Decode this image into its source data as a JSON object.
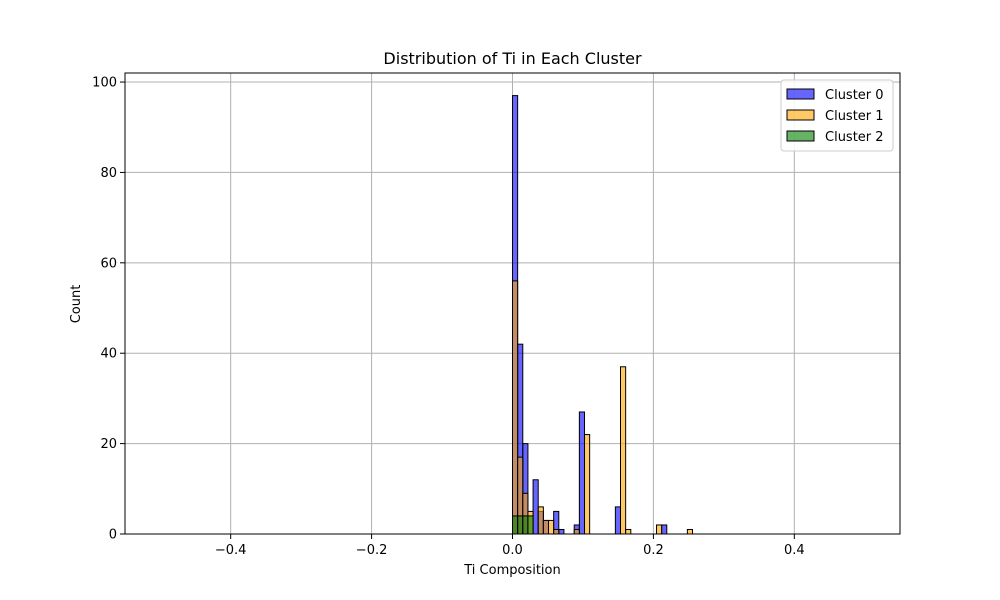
{
  "chart_data": {
    "type": "bar",
    "title": "Distribution of Ti in Each Cluster",
    "xlabel": "Ti Composition",
    "ylabel": "Count",
    "xlim": [
      -0.55,
      0.55
    ],
    "ylim": [
      0,
      102
    ],
    "grid": true,
    "legend_position": "top-right",
    "x_ticks": [
      -0.4,
      -0.2,
      0.0,
      0.2,
      0.4
    ],
    "x_tick_labels": [
      "−0.4",
      "−0.2",
      "0.0",
      "0.2",
      "0.4"
    ],
    "y_ticks": [
      0,
      20,
      40,
      60,
      80,
      100
    ],
    "y_tick_labels": [
      "0",
      "20",
      "40",
      "60",
      "80",
      "100"
    ],
    "bin_width": 0.0073,
    "series": [
      {
        "name": "Cluster 0",
        "color": "#0000ff",
        "bins": [
          {
            "x": 0.0,
            "count": 97
          },
          {
            "x": 0.0073,
            "count": 42
          },
          {
            "x": 0.0146,
            "count": 20
          },
          {
            "x": 0.0292,
            "count": 12
          },
          {
            "x": 0.0365,
            "count": 5
          },
          {
            "x": 0.0438,
            "count": 3
          },
          {
            "x": 0.0584,
            "count": 5
          },
          {
            "x": 0.0657,
            "count": 1
          },
          {
            "x": 0.0876,
            "count": 2
          },
          {
            "x": 0.0949,
            "count": 27
          },
          {
            "x": 0.146,
            "count": 6
          },
          {
            "x": 0.2117,
            "count": 2
          }
        ]
      },
      {
        "name": "Cluster 1",
        "color": "#ffa500",
        "bins": [
          {
            "x": 0.0,
            "count": 56
          },
          {
            "x": 0.0073,
            "count": 17
          },
          {
            "x": 0.0146,
            "count": 9
          },
          {
            "x": 0.0219,
            "count": 5
          },
          {
            "x": 0.0365,
            "count": 6
          },
          {
            "x": 0.0438,
            "count": 3
          },
          {
            "x": 0.0511,
            "count": 3
          },
          {
            "x": 0.0584,
            "count": 1
          },
          {
            "x": 0.0876,
            "count": 1
          },
          {
            "x": 0.1022,
            "count": 22
          },
          {
            "x": 0.1533,
            "count": 37
          },
          {
            "x": 0.1606,
            "count": 1
          },
          {
            "x": 0.2044,
            "count": 2
          },
          {
            "x": 0.2482,
            "count": 1
          }
        ]
      },
      {
        "name": "Cluster 2",
        "color": "#008000",
        "bins": [
          {
            "x": 0.0,
            "count": 4
          },
          {
            "x": 0.0073,
            "count": 4
          },
          {
            "x": 0.0146,
            "count": 4
          },
          {
            "x": 0.0219,
            "count": 4
          }
        ]
      }
    ]
  }
}
